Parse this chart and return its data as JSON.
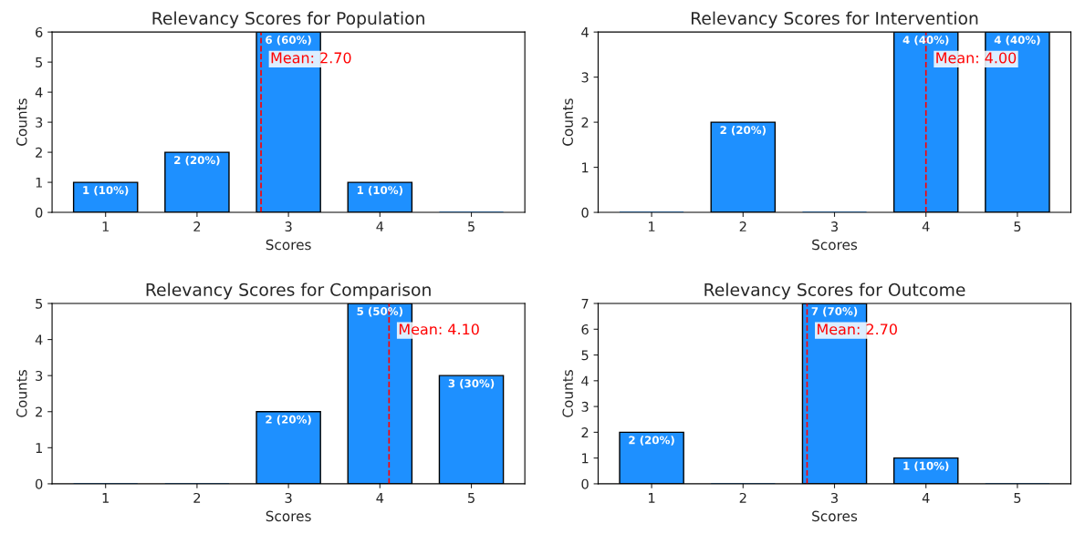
{
  "chart_data": [
    {
      "type": "bar",
      "title": "Relevancy Scores for Population",
      "xlabel": "Scores",
      "ylabel": "Counts",
      "x": [
        1,
        2,
        3,
        4,
        5
      ],
      "values": [
        1,
        2,
        6,
        1,
        0
      ],
      "color": "#1e90ff",
      "value_labels": [
        "1 (10%)",
        "2 (20%)",
        "6 (60%)",
        "1 (10%)",
        null
      ],
      "xlim": [
        0.415,
        5.585
      ],
      "xticks": [
        1,
        2,
        3,
        4,
        5
      ],
      "ylim": [
        0,
        6
      ],
      "yticks": [
        0,
        1,
        2,
        3,
        4,
        5,
        6
      ],
      "ref_lines": [
        {
          "axis": "x",
          "value": 2.7,
          "label": "Mean: 2.70",
          "color": "#ff0000",
          "line_style": "dashed"
        }
      ],
      "grid": false,
      "legend": false
    },
    {
      "type": "bar",
      "title": "Relevancy Scores for Intervention",
      "xlabel": "Scores",
      "ylabel": "Counts",
      "x": [
        1,
        2,
        3,
        4,
        5
      ],
      "values": [
        0,
        2,
        0,
        4,
        4
      ],
      "color": "#1e90ff",
      "value_labels": [
        null,
        "2 (20%)",
        null,
        "4 (40%)",
        "4 (40%)"
      ],
      "xlim": [
        0.415,
        5.585
      ],
      "xticks": [
        1,
        2,
        3,
        4,
        5
      ],
      "ylim": [
        0,
        4
      ],
      "yticks": [
        0,
        1,
        2,
        3,
        4
      ],
      "ref_lines": [
        {
          "axis": "x",
          "value": 4.0,
          "label": "Mean: 4.00",
          "color": "#ff0000",
          "line_style": "dashed"
        }
      ],
      "grid": false,
      "legend": false
    },
    {
      "type": "bar",
      "title": "Relevancy Scores for Comparison",
      "xlabel": "Scores",
      "ylabel": "Counts",
      "x": [
        1,
        2,
        3,
        4,
        5
      ],
      "values": [
        0,
        0,
        2,
        5,
        3
      ],
      "color": "#1e90ff",
      "value_labels": [
        null,
        null,
        "2 (20%)",
        "5 (50%)",
        "3 (30%)"
      ],
      "xlim": [
        0.415,
        5.585
      ],
      "xticks": [
        1,
        2,
        3,
        4,
        5
      ],
      "ylim": [
        0,
        5
      ],
      "yticks": [
        0,
        1,
        2,
        3,
        4,
        5
      ],
      "ref_lines": [
        {
          "axis": "x",
          "value": 4.1,
          "label": "Mean: 4.10",
          "color": "#ff0000",
          "line_style": "dashed"
        }
      ],
      "grid": false,
      "legend": false
    },
    {
      "type": "bar",
      "title": "Relevancy Scores for Outcome",
      "xlabel": "Scores",
      "ylabel": "Counts",
      "x": [
        1,
        2,
        3,
        4,
        5
      ],
      "values": [
        2,
        0,
        7,
        1,
        0
      ],
      "color": "#1e90ff",
      "value_labels": [
        "2 (20%)",
        null,
        "7 (70%)",
        "1 (10%)",
        null
      ],
      "xlim": [
        0.415,
        5.585
      ],
      "xticks": [
        1,
        2,
        3,
        4,
        5
      ],
      "ylim": [
        0,
        7
      ],
      "yticks": [
        0,
        1,
        2,
        3,
        4,
        5,
        6,
        7
      ],
      "ref_lines": [
        {
          "axis": "x",
          "value": 2.7,
          "label": "Mean: 2.70",
          "color": "#ff0000",
          "line_style": "dashed"
        }
      ],
      "grid": false,
      "legend": false
    }
  ]
}
